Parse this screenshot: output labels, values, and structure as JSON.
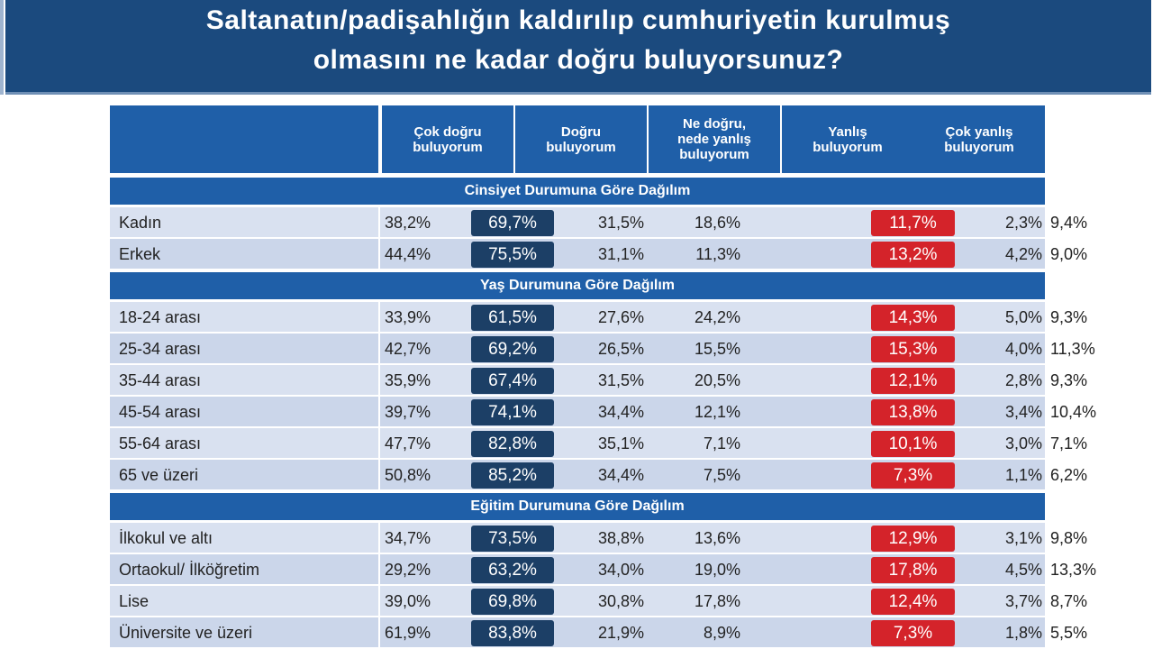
{
  "title": [
    "Saltanatın/padişahlığın kaldırılıp cumhuriyetin kurulmuş",
    "olmasını ne kadar doğru buluyorsunuz?"
  ],
  "table": {
    "columns": [
      "Çok doğru buluyorum",
      "Doğru buluyorum",
      "Ne doğru, nede yanlış buluyorum",
      "Yanlış buluyorum",
      "Çok yanlış buluyorum"
    ],
    "sections": [
      {
        "title": "Cinsiyet Durumuna Göre Dağılım",
        "rows": [
          {
            "label": "Kadın",
            "cells": [
              "38,2%",
              "69,7%",
              "31,5%",
              "18,6%",
              "9,4%",
              "11,7%",
              "2,3%"
            ]
          },
          {
            "label": "Erkek",
            "cells": [
              "44,4%",
              "75,5%",
              "31,1%",
              "11,3%",
              "9,0%",
              "13,2%",
              "4,2%"
            ]
          }
        ]
      },
      {
        "title": "Yaş Durumuna Göre Dağılım",
        "rows": [
          {
            "label": "18-24 arası",
            "cells": [
              "33,9%",
              "61,5%",
              "27,6%",
              "24,2%",
              "9,3%",
              "14,3%",
              "5,0%"
            ]
          },
          {
            "label": "25-34 arası",
            "cells": [
              "42,7%",
              "69,2%",
              "26,5%",
              "15,5%",
              "11,3%",
              "15,3%",
              "4,0%"
            ]
          },
          {
            "label": "35-44 arası",
            "cells": [
              "35,9%",
              "67,4%",
              "31,5%",
              "20,5%",
              "9,3%",
              "12,1%",
              "2,8%"
            ]
          },
          {
            "label": "45-54 arası",
            "cells": [
              "39,7%",
              "74,1%",
              "34,4%",
              "12,1%",
              "10,4%",
              "13,8%",
              "3,4%"
            ]
          },
          {
            "label": "55-64 arası",
            "cells": [
              "47,7%",
              "82,8%",
              "35,1%",
              "7,1%",
              "7,1%",
              "10,1%",
              "3,0%"
            ]
          },
          {
            "label": "65 ve üzeri",
            "cells": [
              "50,8%",
              "85,2%",
              "34,4%",
              "7,5%",
              "6,2%",
              "7,3%",
              "1,1%"
            ]
          }
        ]
      },
      {
        "title": "Eğitim Durumuna Göre Dağılım",
        "rows": [
          {
            "label": "İlkokul ve altı",
            "cells": [
              "34,7%",
              "73,5%",
              "38,8%",
              "13,6%",
              "9,8%",
              "12,9%",
              "3,1%"
            ]
          },
          {
            "label": "Ortaokul/ İlköğretim",
            "cells": [
              "29,2%",
              "63,2%",
              "34,0%",
              "19,0%",
              "13,3%",
              "17,8%",
              "4,5%"
            ]
          },
          {
            "label": "Lise",
            "cells": [
              "39,0%",
              "69,8%",
              "30,8%",
              "17,8%",
              "8,7%",
              "12,4%",
              "3,7%"
            ]
          },
          {
            "label": "Üniversite ve üzeri",
            "cells": [
              "61,9%",
              "83,8%",
              "21,9%",
              "8,9%",
              "5,5%",
              "7,3%",
              "1,8%"
            ]
          }
        ]
      }
    ]
  }
}
